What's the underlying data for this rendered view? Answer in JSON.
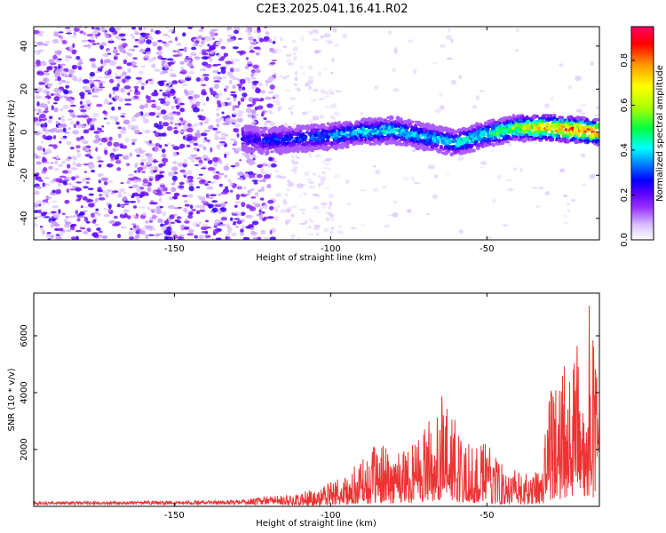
{
  "title": "C2E3.2025.041.16.41.R02",
  "colors": {
    "snr_line": "#ee3333",
    "colormap": [
      "#ffffff",
      "#d8c0ff",
      "#9a33ff",
      "#5a00ff",
      "#0000ff",
      "#0088ff",
      "#00ffff",
      "#00ff44",
      "#aaff00",
      "#ffff00",
      "#ff9900",
      "#ff0000",
      "#ff0066"
    ]
  },
  "chart_data": [
    {
      "type": "heatmap",
      "xlabel": "Height of straight line (km)",
      "ylabel": "Frequency (Hz)",
      "xlim": [
        -195,
        -14
      ],
      "ylim": [
        -50,
        49
      ],
      "x_ticks": [
        -150,
        -100,
        -50
      ],
      "y_ticks": [
        40,
        20,
        0,
        -20,
        -40
      ],
      "colorbar": {
        "label": "Normalized spectral amplitude",
        "range": [
          0,
          0.95
        ],
        "ticks": [
          0.0,
          0.2,
          0.4,
          0.6,
          0.8
        ]
      },
      "ridge": {
        "x": [
          -127,
          -120,
          -110,
          -100,
          -90,
          -80,
          -70,
          -60,
          -50,
          -40,
          -30,
          -20,
          -14
        ],
        "frequency": [
          -3,
          -4,
          -3,
          -2,
          0,
          1,
          -2,
          -5,
          -1,
          2,
          2,
          1,
          0
        ],
        "amplitude": [
          0.25,
          0.28,
          0.3,
          0.35,
          0.4,
          0.42,
          0.38,
          0.4,
          0.45,
          0.6,
          0.8,
          0.85,
          0.82
        ]
      }
    },
    {
      "type": "line",
      "xlabel": "Height of straight line (km)",
      "ylabel": "SNR (10 * v/v)",
      "xlim": [
        -195,
        -14
      ],
      "ylim": [
        0,
        7500
      ],
      "x_ticks": [
        -150,
        -100,
        -50
      ],
      "y_ticks": [
        2000,
        4000,
        6000
      ],
      "envelope": {
        "x": [
          -195,
          -160,
          -130,
          -115,
          -110,
          -105,
          -100,
          -95,
          -90,
          -85,
          -80,
          -75,
          -70,
          -65,
          -60,
          -55,
          -50,
          -45,
          -40,
          -35,
          -32,
          -30,
          -25,
          -20,
          -17,
          -15,
          -14
        ],
        "y": [
          150,
          160,
          200,
          400,
          500,
          600,
          900,
          1100,
          1700,
          2200,
          2100,
          2400,
          3000,
          4000,
          3000,
          2300,
          2200,
          1600,
          1200,
          1100,
          2000,
          4200,
          5200,
          5800,
          7200,
          4500,
          4800
        ]
      }
    }
  ]
}
